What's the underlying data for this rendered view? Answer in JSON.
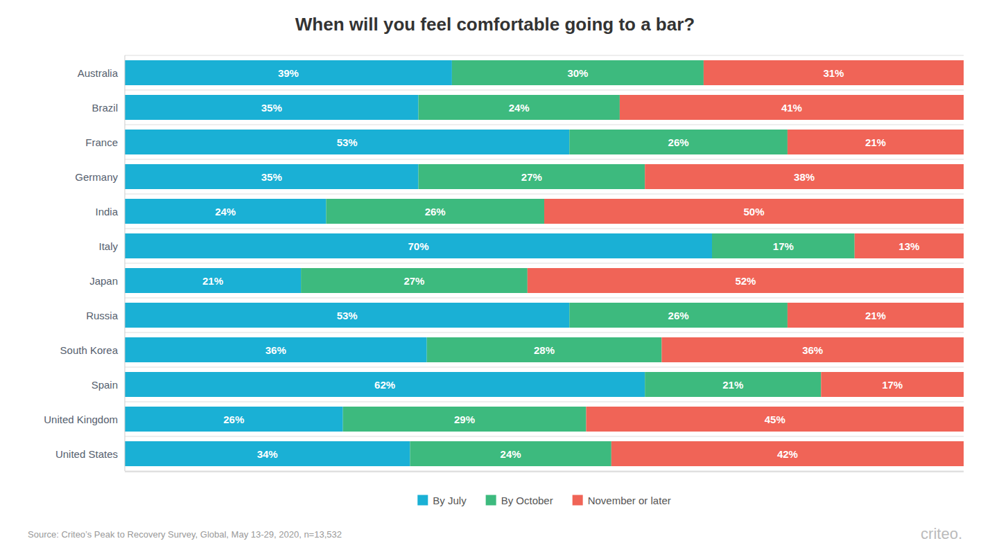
{
  "chart_data": {
    "type": "bar",
    "orientation": "horizontal",
    "stacked": true,
    "title": "When will you feel comfortable going to a bar?",
    "categories": [
      "Australia",
      "Brazil",
      "France",
      "Germany",
      "India",
      "Italy",
      "Japan",
      "Russia",
      "South Korea",
      "Spain",
      "United Kingdom",
      "United States"
    ],
    "series": [
      {
        "name": "By July",
        "color": "#1ab0d5",
        "values": [
          39,
          35,
          53,
          35,
          24,
          70,
          21,
          53,
          36,
          62,
          26,
          34
        ],
        "value_labels": [
          "39%",
          "35%",
          "53%",
          "35%",
          "24%",
          "70%",
          "21%",
          "53%",
          "36%",
          "62%",
          "26%",
          "34%"
        ]
      },
      {
        "name": "By October",
        "color": "#3dba7e",
        "values": [
          30,
          24,
          26,
          27,
          26,
          17,
          27,
          26,
          28,
          21,
          29,
          24
        ],
        "value_labels": [
          "30%",
          "24%",
          "26%",
          "27%",
          "26%",
          "17%",
          "27%",
          "26%",
          "28%",
          "21%",
          "29%",
          "24%"
        ]
      },
      {
        "name": "November or later",
        "color": "#f06457",
        "values": [
          31,
          41,
          21,
          38,
          50,
          13,
          52,
          21,
          36,
          17,
          45,
          42
        ],
        "value_labels": [
          "31%",
          "41%",
          "21%",
          "38%",
          "50%",
          "13%",
          "52%",
          "21%",
          "36%",
          "17%",
          "45%",
          "42%"
        ]
      }
    ],
    "xlim": [
      0,
      100
    ],
    "data_labels": true,
    "tick_labels": "y",
    "grid": false,
    "legend": "bottom",
    "annotations": [
      "Source: Criteo’s Peak to Recovery Survey, Global, May 13-29, 2020, n=13,532",
      "criteo."
    ]
  }
}
